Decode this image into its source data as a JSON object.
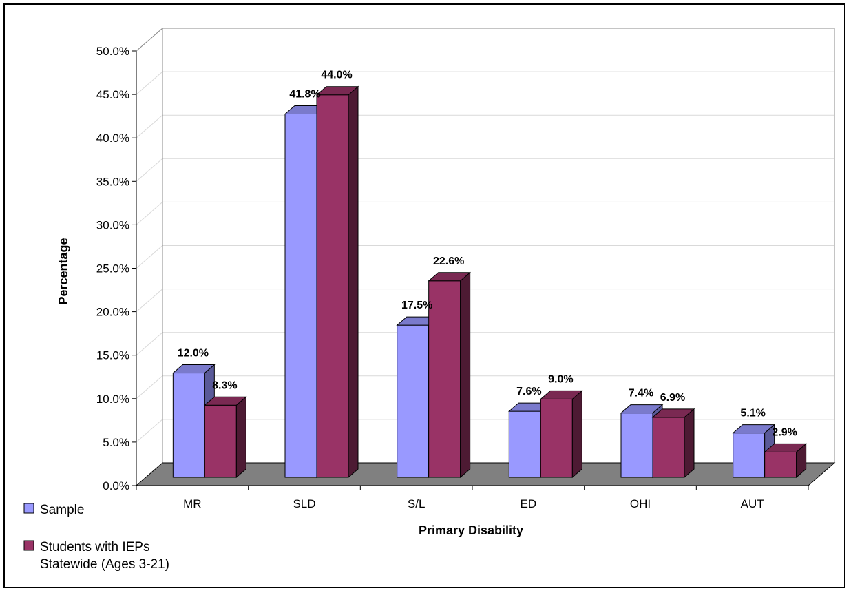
{
  "chart_data": {
    "type": "bar",
    "xlabel": "Primary Disability",
    "ylabel": "Percentage",
    "categories": [
      "MR",
      "SLD",
      "S/L",
      "ED",
      "OHI",
      "AUT"
    ],
    "series": [
      {
        "name": "Sample",
        "values": [
          12.0,
          41.8,
          17.5,
          7.6,
          7.4,
          5.1
        ],
        "labels": [
          "12.0%",
          "41.8%",
          "17.5%",
          "7.6%",
          "7.4%",
          "5.1%"
        ]
      },
      {
        "name_lines": [
          "Students with IEPs",
          "Statewide (Ages 3-21)"
        ],
        "values": [
          8.3,
          44.0,
          22.6,
          9.0,
          6.9,
          2.9
        ],
        "labels": [
          "8.3%",
          "44.0%",
          "22.6%",
          "9.0%",
          "6.9%",
          "2.9%"
        ]
      }
    ],
    "ylim": [
      0,
      50
    ],
    "yticks": [
      "0.0%",
      "5.0%",
      "10.0%",
      "15.0%",
      "20.0%",
      "25.0%",
      "30.0%",
      "35.0%",
      "40.0%",
      "45.0%",
      "50.0%"
    ],
    "grid": true,
    "legend_position": "bottom-left",
    "colors": {
      "series1_front": "#9999ff",
      "series1_side": "#5a5a99",
      "series1_top": "#7a7acc",
      "series2_front": "#993366",
      "series2_side": "#4d1a33",
      "series2_top": "#7a2952",
      "floor": "#808080",
      "gridline": "#d9d9d9"
    }
  }
}
